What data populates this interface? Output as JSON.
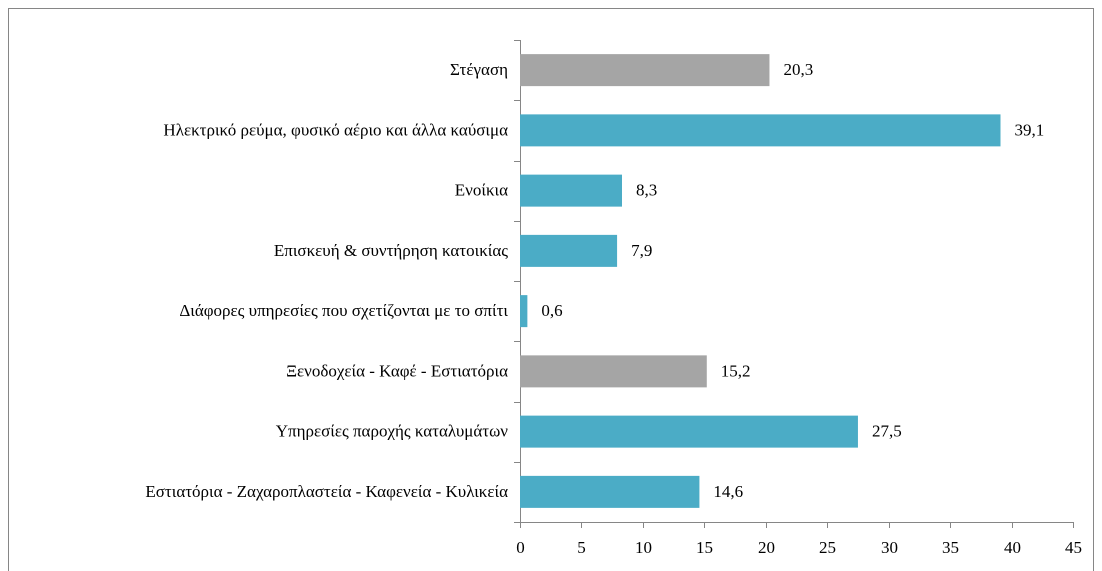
{
  "chart_data": {
    "type": "bar",
    "orientation": "horizontal",
    "categories": [
      "Στέγαση",
      "Ηλεκτρικό ρεύμα, φυσικό αέριο και άλλα καύσιμα",
      "Ενοίκια",
      "Επισκευή & συντήρηση κατοικίας",
      "Διάφορες υπηρεσίες που σχετίζονται με το σπίτι",
      "Ξενοδοχεία - Καφέ - Εστιατόρια",
      "Υπηρεσίες παροχής καταλυμάτων",
      "Εστιατόρια - Ζαχαροπλαστεία - Καφενεία - Κυλικεία"
    ],
    "values": [
      20.3,
      39.1,
      8.3,
      7.9,
      0.6,
      15.2,
      27.5,
      14.6
    ],
    "value_labels": [
      "20,3",
      "39,1",
      "8,3",
      "7,9",
      "0,6",
      "15,2",
      "27,5",
      "14,6"
    ],
    "colors": [
      "#a5a5a5",
      "#4bacc6",
      "#4bacc6",
      "#4bacc6",
      "#4bacc6",
      "#a5a5a5",
      "#4bacc6",
      "#4bacc6"
    ],
    "xlim": [
      0,
      45
    ],
    "xticks": [
      0,
      5,
      10,
      15,
      20,
      25,
      30,
      35,
      40,
      45
    ],
    "grid": false
  }
}
